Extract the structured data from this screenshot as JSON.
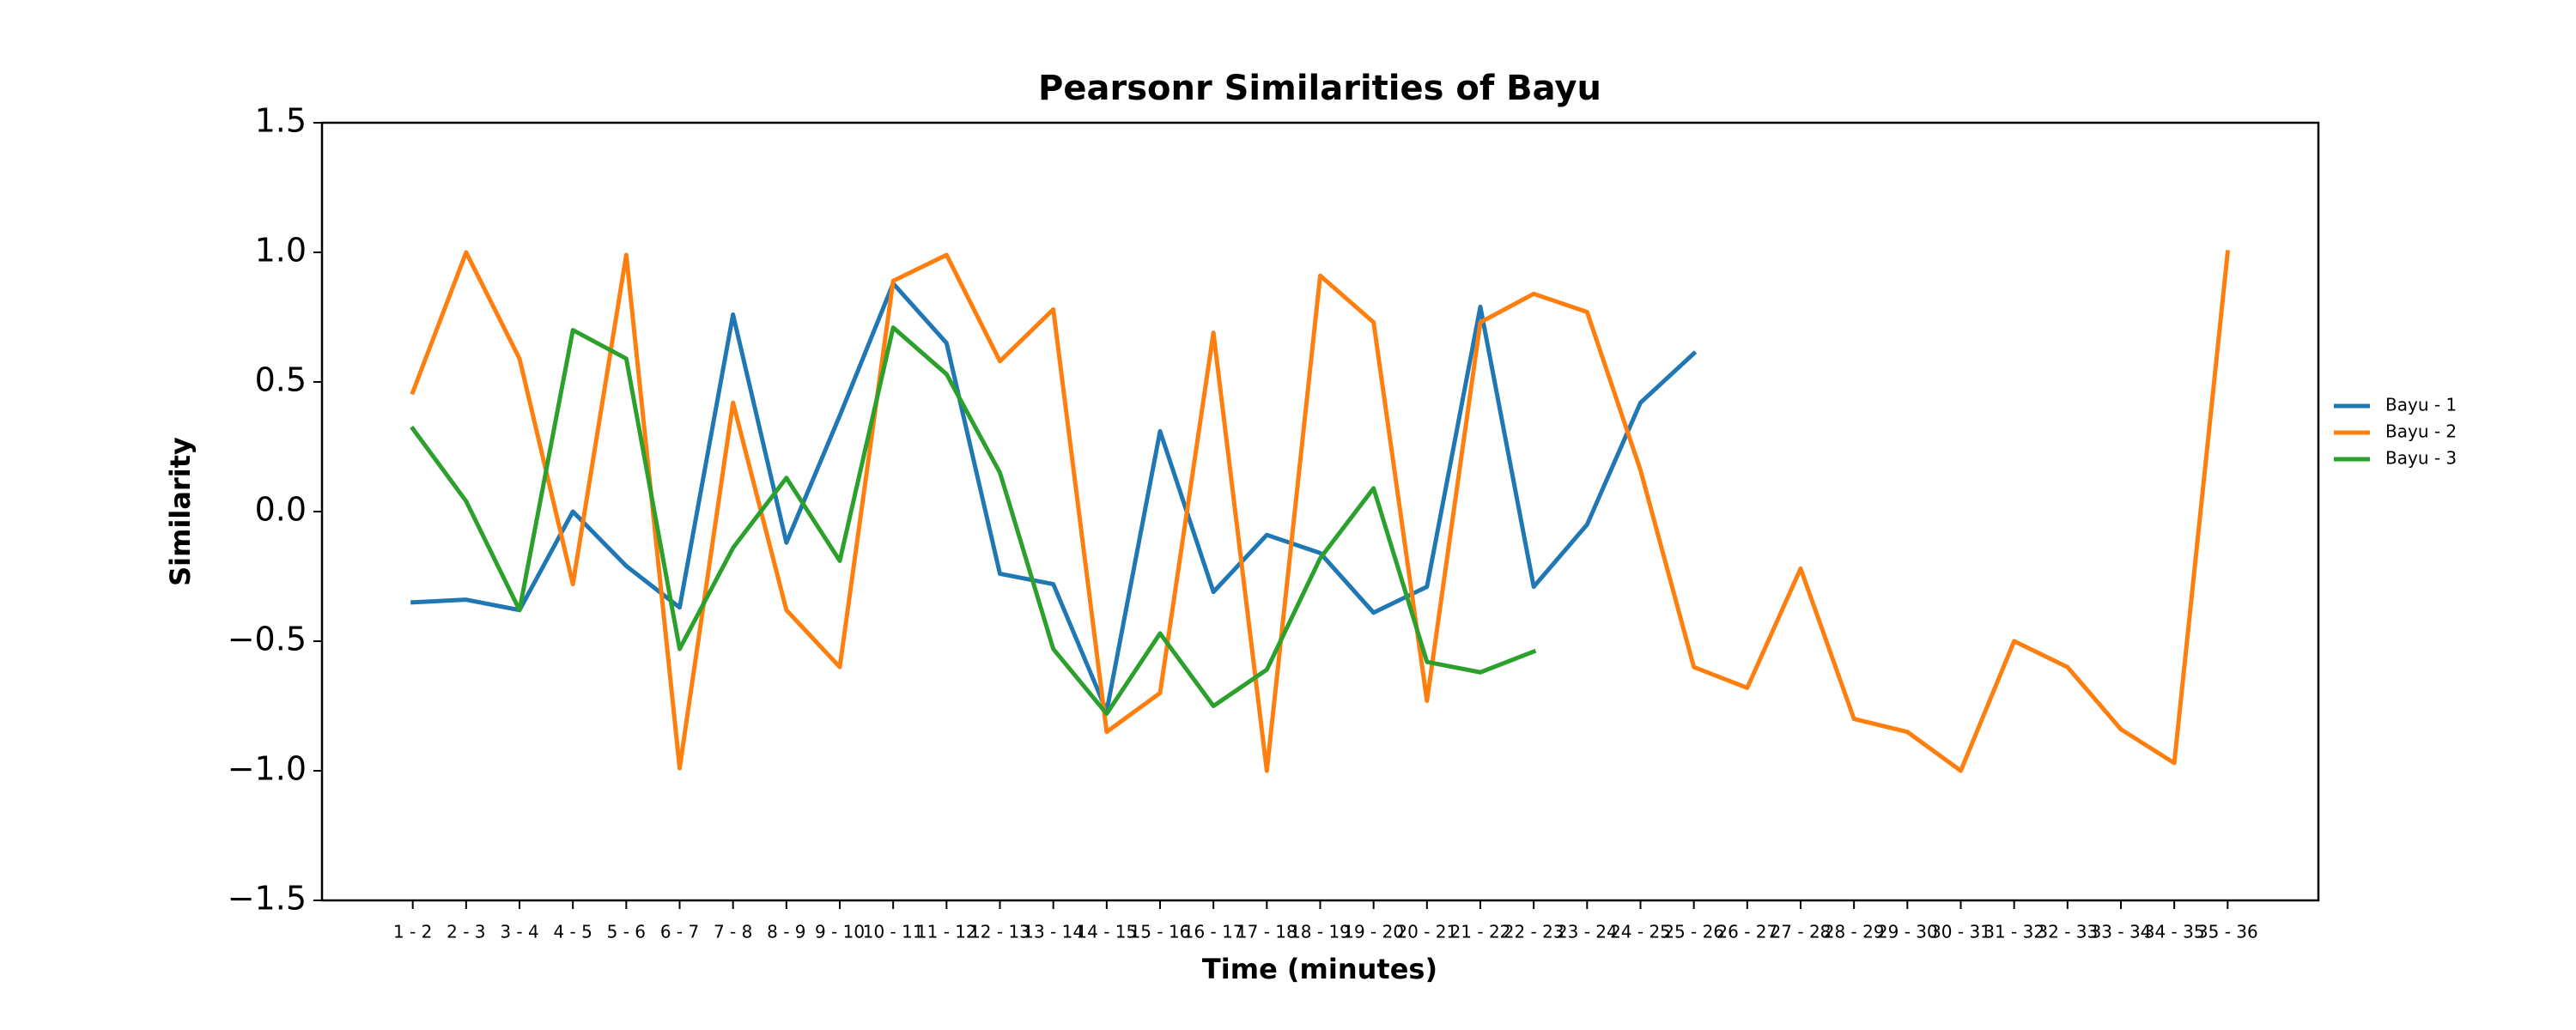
{
  "chart_data": {
    "type": "line",
    "title": "Pearsonr Similarities of Bayu",
    "xlabel": "Time (minutes)",
    "ylabel": "Similarity",
    "categories": [
      "1 - 2",
      "2 - 3",
      "3 - 4",
      "4 - 5",
      "5 - 6",
      "6 - 7",
      "7 - 8",
      "8 - 9",
      "9 - 10",
      "10 - 11",
      "11 - 12",
      "12 - 13",
      "13 - 14",
      "14 - 15",
      "15 - 16",
      "16 - 17",
      "17 - 18",
      "18 - 19",
      "19 - 20",
      "20 - 21",
      "21 - 22",
      "22 - 23",
      "23 - 24",
      "24 - 25",
      "25 - 26",
      "26 - 27",
      "27 - 28",
      "28 - 29",
      "29 - 30",
      "30 - 31",
      "31 - 32",
      "32 - 33",
      "33 - 34",
      "34 - 35",
      "35 - 36"
    ],
    "series": [
      {
        "name": "Bayu - 1",
        "color": "#1f77b4",
        "values": [
          -0.35,
          -0.34,
          -0.38,
          0.0,
          -0.21,
          -0.37,
          0.76,
          -0.12,
          0.37,
          0.88,
          0.65,
          -0.24,
          -0.28,
          -0.77,
          0.31,
          -0.31,
          -0.09,
          -0.16,
          -0.39,
          -0.29,
          0.79,
          -0.29,
          -0.05,
          0.42,
          0.61,
          null,
          null,
          null,
          null,
          null,
          null,
          null,
          null,
          null,
          null
        ]
      },
      {
        "name": "Bayu - 2",
        "color": "#ff7f0e",
        "values": [
          0.46,
          1.0,
          0.59,
          -0.28,
          0.99,
          -0.99,
          0.42,
          -0.38,
          -0.6,
          0.89,
          0.99,
          0.58,
          0.78,
          -0.85,
          -0.7,
          0.69,
          -1.0,
          0.91,
          0.73,
          -0.73,
          0.73,
          0.84,
          0.77,
          0.16,
          -0.6,
          -0.68,
          -0.22,
          -0.8,
          -0.85,
          -1.0,
          -0.5,
          -0.6,
          -0.84,
          -0.97,
          1.0
        ]
      },
      {
        "name": "Bayu - 3",
        "color": "#2ca02c",
        "values": [
          0.32,
          0.04,
          -0.38,
          0.7,
          0.59,
          -0.53,
          -0.14,
          0.13,
          -0.19,
          0.71,
          0.53,
          0.15,
          -0.53,
          -0.78,
          -0.47,
          -0.75,
          -0.61,
          -0.18,
          0.09,
          -0.58,
          -0.62,
          -0.54,
          null,
          null,
          null,
          null,
          null,
          null,
          null,
          null,
          null,
          null,
          null,
          null,
          null
        ]
      }
    ],
    "ylim": [
      -1.5,
      1.5
    ],
    "yticks": [
      {
        "value": -1.5,
        "label": "−1.5"
      },
      {
        "value": -1.0,
        "label": "−1.0"
      },
      {
        "value": -0.5,
        "label": "−0.5"
      },
      {
        "value": 0,
        "label": "0.0"
      },
      0.5,
      {
        "value": 1.0,
        "label": "1.0"
      },
      1.5
    ],
    "grid": false,
    "legend": "right"
  }
}
